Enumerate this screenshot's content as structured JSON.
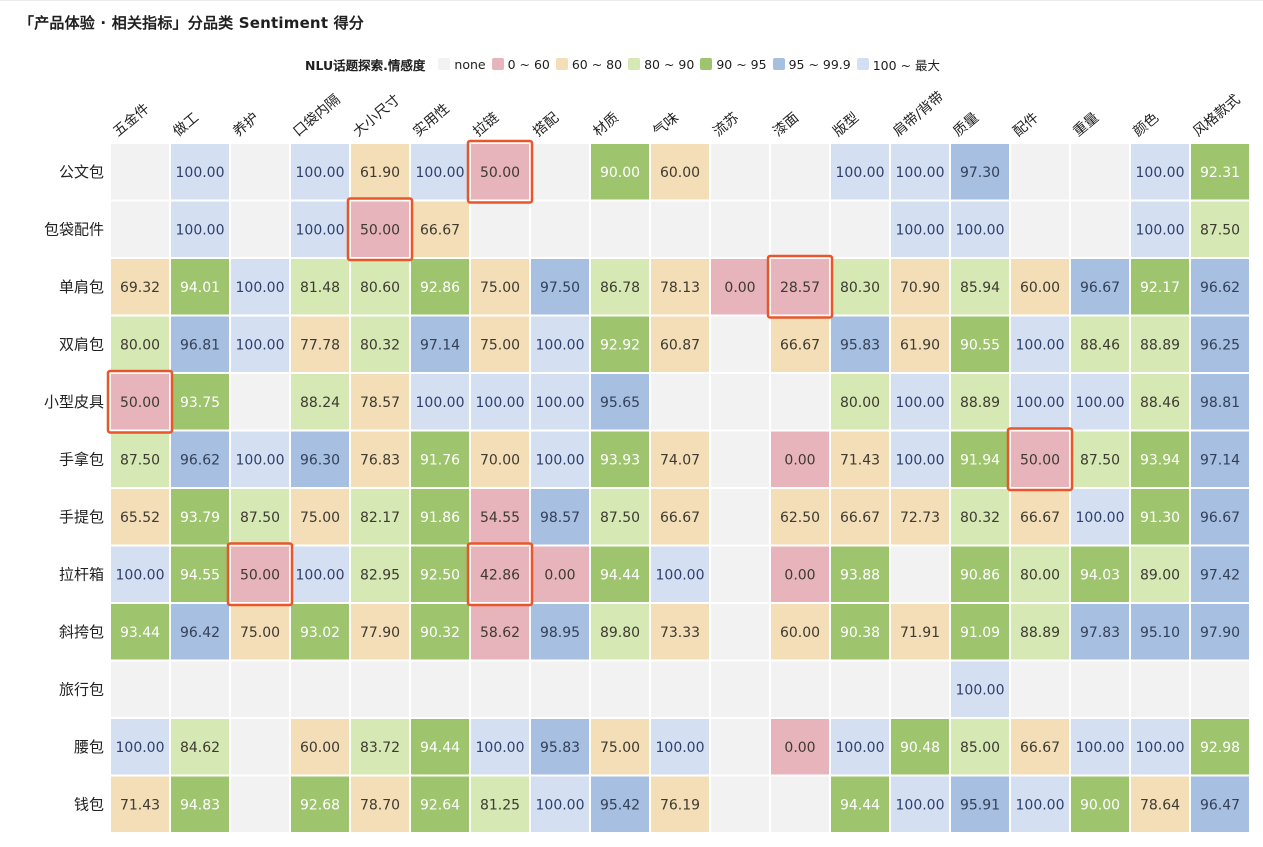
{
  "title": "「产品体验 · 相关指标」分品类 Sentiment 得分",
  "legend": {
    "title": "NLU话题探索.情感度",
    "items": [
      {
        "label": "none",
        "color": "#f2f2f2"
      },
      {
        "label": "0 ~ 60",
        "color": "#e8b4bc"
      },
      {
        "label": "60 ~ 80",
        "color": "#f4deb8"
      },
      {
        "label": "80 ~ 90",
        "color": "#d6e9b5"
      },
      {
        "label": "90 ~ 95",
        "color": "#9ec46e"
      },
      {
        "label": "95 ~ 99.9",
        "color": "#a7bfe0"
      },
      {
        "label": "100 ~ 最大",
        "color": "#d4dff2"
      }
    ]
  },
  "chart_data": {
    "type": "heatmap",
    "title": "「产品体验 · 相关指标」分品类 Sentiment 得分",
    "columns": [
      "五金件",
      "做工",
      "养护",
      "口袋内隔",
      "大小尺寸",
      "实用性",
      "拉链",
      "搭配",
      "材质",
      "气味",
      "流苏",
      "漆面",
      "版型",
      "肩带/背带",
      "质量",
      "配件",
      "重量",
      "颜色",
      "风格款式"
    ],
    "rows": [
      "公文包",
      "包袋配件",
      "单肩包",
      "双肩包",
      "小型皮具",
      "手拿包",
      "手提包",
      "拉杆箱",
      "斜挎包",
      "旅行包",
      "腰包",
      "钱包"
    ],
    "values": [
      [
        null,
        100.0,
        null,
        100.0,
        61.9,
        100.0,
        50.0,
        null,
        90.0,
        60.0,
        null,
        null,
        100.0,
        100.0,
        97.3,
        null,
        null,
        100.0,
        92.31
      ],
      [
        null,
        100.0,
        null,
        100.0,
        50.0,
        66.67,
        null,
        null,
        null,
        null,
        null,
        null,
        null,
        100.0,
        100.0,
        null,
        null,
        100.0,
        87.5
      ],
      [
        69.32,
        94.01,
        100.0,
        81.48,
        80.6,
        92.86,
        75.0,
        97.5,
        86.78,
        78.13,
        0.0,
        28.57,
        80.3,
        70.9,
        85.94,
        60.0,
        96.67,
        92.17,
        96.62
      ],
      [
        80.0,
        96.81,
        100.0,
        77.78,
        80.32,
        97.14,
        75.0,
        100.0,
        92.92,
        60.87,
        null,
        66.67,
        95.83,
        61.9,
        90.55,
        100.0,
        88.46,
        88.89,
        96.25
      ],
      [
        50.0,
        93.75,
        null,
        88.24,
        78.57,
        100.0,
        100.0,
        100.0,
        95.65,
        null,
        null,
        null,
        80.0,
        100.0,
        88.89,
        100.0,
        100.0,
        88.46,
        98.81
      ],
      [
        87.5,
        96.62,
        100.0,
        96.3,
        76.83,
        91.76,
        70.0,
        100.0,
        93.93,
        74.07,
        null,
        0.0,
        71.43,
        100.0,
        91.94,
        50.0,
        87.5,
        93.94,
        97.14
      ],
      [
        65.52,
        93.79,
        87.5,
        75.0,
        82.17,
        91.86,
        54.55,
        98.57,
        87.5,
        66.67,
        null,
        62.5,
        66.67,
        72.73,
        80.32,
        66.67,
        100.0,
        91.3,
        96.67
      ],
      [
        100.0,
        94.55,
        50.0,
        100.0,
        82.95,
        92.5,
        42.86,
        0.0,
        94.44,
        100.0,
        null,
        0.0,
        93.88,
        null,
        90.86,
        80.0,
        94.03,
        89.0,
        97.42
      ],
      [
        93.44,
        96.42,
        75.0,
        93.02,
        77.9,
        90.32,
        58.62,
        98.95,
        89.8,
        73.33,
        null,
        60.0,
        90.38,
        71.91,
        91.09,
        88.89,
        97.83,
        95.1,
        97.9
      ],
      [
        null,
        null,
        null,
        null,
        null,
        null,
        null,
        null,
        null,
        null,
        null,
        null,
        null,
        null,
        100.0,
        null,
        null,
        null,
        null
      ],
      [
        100.0,
        84.62,
        null,
        60.0,
        83.72,
        94.44,
        100.0,
        95.83,
        75.0,
        100.0,
        null,
        0.0,
        100.0,
        90.48,
        85.0,
        66.67,
        100.0,
        100.0,
        92.98
      ],
      [
        71.43,
        94.83,
        null,
        92.68,
        78.7,
        92.64,
        81.25,
        100.0,
        95.42,
        76.19,
        null,
        null,
        94.44,
        100.0,
        95.91,
        100.0,
        90.0,
        78.64,
        96.47
      ]
    ],
    "highlights": [
      {
        "row": "公文包",
        "column": "拉链"
      },
      {
        "row": "包袋配件",
        "column": "大小尺寸"
      },
      {
        "row": "单肩包",
        "column": "漆面"
      },
      {
        "row": "小型皮具",
        "column": "五金件"
      },
      {
        "row": "手拿包",
        "column": "配件"
      },
      {
        "row": "拉杆箱",
        "column": "养护"
      },
      {
        "row": "拉杆箱",
        "column": "拉链"
      }
    ],
    "value_format": "2 decimals",
    "highlight_color": "#e8562a"
  }
}
